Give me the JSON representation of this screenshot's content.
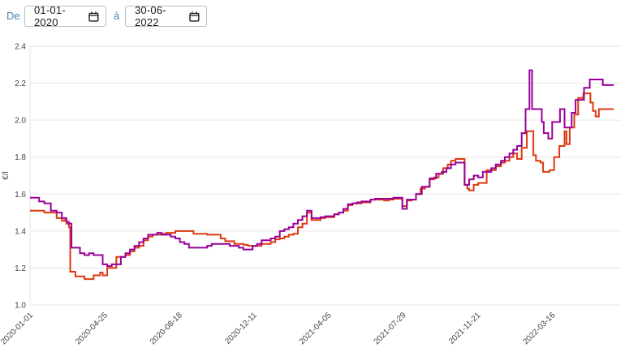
{
  "controls": {
    "from_label": "De",
    "to_label": "à",
    "from_value": "01-01-2020",
    "to_value": "30-06-2022",
    "label_color": "#4682b4"
  },
  "chart_data": {
    "type": "line",
    "step": true,
    "title": "",
    "xlabel": "",
    "ylabel": "€/l",
    "ylim": [
      1.0,
      2.4
    ],
    "y_ticks": [
      1.0,
      1.2,
      1.4,
      1.6,
      1.8,
      2.0,
      2.2,
      2.4
    ],
    "x_range_days": [
      0,
      911
    ],
    "x_tick_days": [
      0,
      115,
      230,
      345,
      460,
      575,
      690,
      805
    ],
    "x_tick_labels": [
      "2020-01-01",
      "2020-04-25",
      "2020-08-18",
      "2020-12-11",
      "2021-04-05",
      "2021-07-29",
      "2021-11-21",
      "2022-03-16"
    ],
    "grid": true,
    "legend": "none",
    "grid_color": "#e6e6e6",
    "tick_color": "#444444",
    "series": [
      {
        "name": "red-series",
        "color": "#dc3912",
        "points": [
          [
            0,
            1.51
          ],
          [
            22,
            1.5
          ],
          [
            41,
            1.47
          ],
          [
            49,
            1.455
          ],
          [
            53,
            1.46
          ],
          [
            56,
            1.44
          ],
          [
            60,
            1.42
          ],
          [
            62,
            1.18
          ],
          [
            70,
            1.155
          ],
          [
            84,
            1.14
          ],
          [
            98,
            1.16
          ],
          [
            108,
            1.175
          ],
          [
            112,
            1.16
          ],
          [
            119,
            1.2
          ],
          [
            133,
            1.26
          ],
          [
            147,
            1.27
          ],
          [
            154,
            1.29
          ],
          [
            161,
            1.31
          ],
          [
            168,
            1.32
          ],
          [
            175,
            1.35
          ],
          [
            182,
            1.37
          ],
          [
            189,
            1.38
          ],
          [
            203,
            1.385
          ],
          [
            210,
            1.39
          ],
          [
            224,
            1.4
          ],
          [
            252,
            1.385
          ],
          [
            273,
            1.38
          ],
          [
            294,
            1.36
          ],
          [
            301,
            1.345
          ],
          [
            315,
            1.33
          ],
          [
            329,
            1.325
          ],
          [
            336,
            1.32
          ],
          [
            357,
            1.33
          ],
          [
            371,
            1.34
          ],
          [
            378,
            1.355
          ],
          [
            385,
            1.36
          ],
          [
            392,
            1.37
          ],
          [
            399,
            1.38
          ],
          [
            406,
            1.385
          ],
          [
            413,
            1.42
          ],
          [
            420,
            1.44
          ],
          [
            427,
            1.5
          ],
          [
            434,
            1.46
          ],
          [
            448,
            1.47
          ],
          [
            455,
            1.475
          ],
          [
            469,
            1.49
          ],
          [
            476,
            1.5
          ],
          [
            483,
            1.51
          ],
          [
            490,
            1.54
          ],
          [
            497,
            1.55
          ],
          [
            511,
            1.555
          ],
          [
            525,
            1.57
          ],
          [
            546,
            1.565
          ],
          [
            553,
            1.57
          ],
          [
            560,
            1.575
          ],
          [
            574,
            1.535
          ],
          [
            581,
            1.565
          ],
          [
            588,
            1.57
          ],
          [
            595,
            1.6
          ],
          [
            602,
            1.63
          ],
          [
            609,
            1.64
          ],
          [
            616,
            1.68
          ],
          [
            623,
            1.69
          ],
          [
            630,
            1.71
          ],
          [
            637,
            1.74
          ],
          [
            644,
            1.76
          ],
          [
            649,
            1.78
          ],
          [
            656,
            1.79
          ],
          [
            670,
            1.65
          ],
          [
            674,
            1.63
          ],
          [
            677,
            1.62
          ],
          [
            684,
            1.65
          ],
          [
            691,
            1.66
          ],
          [
            704,
            1.73
          ],
          [
            718,
            1.75
          ],
          [
            726,
            1.77
          ],
          [
            732,
            1.78
          ],
          [
            739,
            1.8
          ],
          [
            745,
            1.82
          ],
          [
            751,
            1.79
          ],
          [
            758,
            1.85
          ],
          [
            766,
            1.94
          ],
          [
            776,
            1.81
          ],
          [
            780,
            1.78
          ],
          [
            787,
            1.77
          ],
          [
            791,
            1.72
          ],
          [
            801,
            1.73
          ],
          [
            808,
            1.8
          ],
          [
            816,
            1.86
          ],
          [
            824,
            1.94
          ],
          [
            827,
            1.87
          ],
          [
            832,
            1.96
          ],
          [
            839,
            2.03
          ],
          [
            845,
            2.12
          ],
          [
            853,
            2.145
          ],
          [
            864,
            2.095
          ],
          [
            868,
            2.05
          ],
          [
            872,
            2.02
          ],
          [
            877,
            2.06
          ],
          [
            900,
            2.06
          ]
        ]
      },
      {
        "name": "purple-series",
        "color": "#990099",
        "points": [
          [
            0,
            1.58
          ],
          [
            14,
            1.56
          ],
          [
            22,
            1.55
          ],
          [
            32,
            1.51
          ],
          [
            41,
            1.5
          ],
          [
            49,
            1.47
          ],
          [
            56,
            1.45
          ],
          [
            60,
            1.44
          ],
          [
            64,
            1.31
          ],
          [
            77,
            1.28
          ],
          [
            84,
            1.27
          ],
          [
            91,
            1.28
          ],
          [
            98,
            1.27
          ],
          [
            112,
            1.22
          ],
          [
            119,
            1.21
          ],
          [
            126,
            1.22
          ],
          [
            140,
            1.26
          ],
          [
            147,
            1.28
          ],
          [
            154,
            1.3
          ],
          [
            161,
            1.32
          ],
          [
            168,
            1.34
          ],
          [
            175,
            1.36
          ],
          [
            182,
            1.38
          ],
          [
            196,
            1.39
          ],
          [
            203,
            1.38
          ],
          [
            217,
            1.37
          ],
          [
            224,
            1.36
          ],
          [
            231,
            1.34
          ],
          [
            238,
            1.33
          ],
          [
            245,
            1.31
          ],
          [
            273,
            1.32
          ],
          [
            280,
            1.33
          ],
          [
            308,
            1.32
          ],
          [
            322,
            1.31
          ],
          [
            329,
            1.3
          ],
          [
            343,
            1.32
          ],
          [
            350,
            1.33
          ],
          [
            357,
            1.35
          ],
          [
            371,
            1.36
          ],
          [
            378,
            1.37
          ],
          [
            385,
            1.4
          ],
          [
            392,
            1.41
          ],
          [
            399,
            1.42
          ],
          [
            406,
            1.44
          ],
          [
            413,
            1.46
          ],
          [
            420,
            1.48
          ],
          [
            427,
            1.51
          ],
          [
            434,
            1.47
          ],
          [
            448,
            1.475
          ],
          [
            455,
            1.48
          ],
          [
            469,
            1.49
          ],
          [
            476,
            1.5
          ],
          [
            483,
            1.52
          ],
          [
            490,
            1.545
          ],
          [
            497,
            1.55
          ],
          [
            504,
            1.555
          ],
          [
            511,
            1.56
          ],
          [
            525,
            1.57
          ],
          [
            532,
            1.575
          ],
          [
            560,
            1.58
          ],
          [
            574,
            1.52
          ],
          [
            581,
            1.57
          ],
          [
            595,
            1.6
          ],
          [
            604,
            1.64
          ],
          [
            616,
            1.685
          ],
          [
            626,
            1.71
          ],
          [
            635,
            1.72
          ],
          [
            642,
            1.74
          ],
          [
            649,
            1.76
          ],
          [
            656,
            1.77
          ],
          [
            670,
            1.65
          ],
          [
            677,
            1.68
          ],
          [
            684,
            1.7
          ],
          [
            691,
            1.69
          ],
          [
            698,
            1.72
          ],
          [
            711,
            1.74
          ],
          [
            718,
            1.76
          ],
          [
            726,
            1.78
          ],
          [
            732,
            1.8
          ],
          [
            739,
            1.82
          ],
          [
            745,
            1.84
          ],
          [
            751,
            1.86
          ],
          [
            758,
            1.93
          ],
          [
            764,
            2.06
          ],
          [
            770,
            2.27
          ],
          [
            774,
            2.06
          ],
          [
            789,
            1.99
          ],
          [
            792,
            1.93
          ],
          [
            799,
            1.9
          ],
          [
            805,
            1.99
          ],
          [
            817,
            2.06
          ],
          [
            824,
            1.96
          ],
          [
            835,
            2.04
          ],
          [
            841,
            2.11
          ],
          [
            854,
            2.175
          ],
          [
            863,
            2.22
          ],
          [
            883,
            2.19
          ],
          [
            900,
            2.19
          ]
        ]
      }
    ]
  }
}
